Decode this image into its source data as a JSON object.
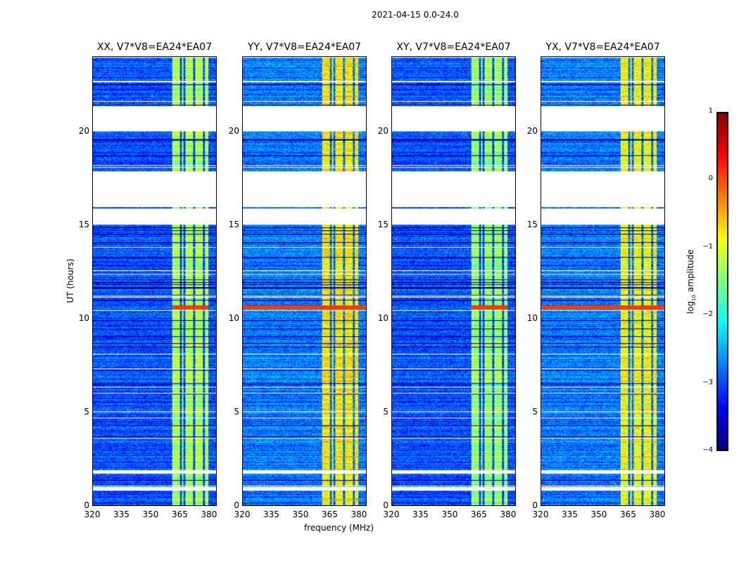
{
  "suptitle": "2021-04-15 0.0-24.0",
  "chart_data": {
    "type": "heatmap",
    "xlabel": "frequency (MHz)",
    "ylabel": "UT (hours)",
    "xlim": [
      320,
      384
    ],
    "ylim": [
      0,
      24
    ],
    "xticks": [
      "320",
      "335",
      "350",
      "365",
      "380"
    ],
    "xtick_values": [
      320,
      335,
      350,
      365,
      380
    ],
    "yticks": [
      "0",
      "5",
      "10",
      "15",
      "20"
    ],
    "ytick_values": [
      0,
      5,
      10,
      15,
      20
    ],
    "colorbar": {
      "label_main": "log",
      "label_sub": "10",
      "label_rest": " amplitude",
      "range": [
        -4,
        1
      ],
      "ticks": [
        "1",
        "0",
        "−1",
        "−2",
        "−3",
        "−4"
      ],
      "tick_values": [
        1,
        0,
        -1,
        -2,
        -3,
        -4
      ],
      "colormap": "jet"
    },
    "flagged_ut_ranges": [
      [
        20.05,
        21.4
      ],
      [
        16.0,
        17.9
      ],
      [
        15.05,
        15.9
      ],
      [
        1.7,
        1.9
      ],
      [
        0.8,
        1.0
      ]
    ],
    "bright_band_mhz": [
      361,
      380
    ],
    "band_gaps_mhz": [
      365.5,
      367.5,
      372.5,
      377.5
    ],
    "rfi_line_ut": 10.6,
    "panels": [
      {
        "title": "XX, V7*V8=EA24*EA07",
        "background_level": -3.0,
        "band_level": -1.3,
        "rfi_full_width": false
      },
      {
        "title": "YY, V7*V8=EA24*EA07",
        "background_level": -2.8,
        "band_level": -0.8,
        "rfi_full_width": true
      },
      {
        "title": "XY, V7*V8=EA24*EA07",
        "background_level": -3.0,
        "band_level": -1.4,
        "rfi_full_width": false
      },
      {
        "title": "YX, V7*V8=EA24*EA07",
        "background_level": -2.8,
        "band_level": -0.9,
        "rfi_full_width": true
      }
    ]
  }
}
